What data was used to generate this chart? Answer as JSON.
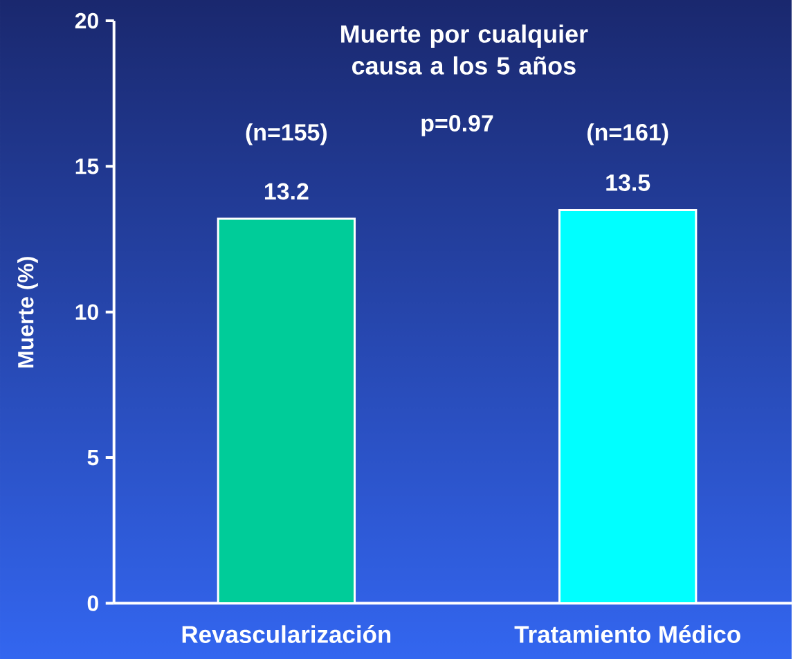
{
  "chart_data": {
    "type": "bar",
    "title": "Muerte por cualquier causa a los 5 años",
    "categories": [
      "Revascularización",
      "Tratamiento Médico"
    ],
    "values": [
      13.2,
      13.5
    ],
    "colors": [
      "#00cc99",
      "#00ffff"
    ],
    "ylabel": "Muerte (%)",
    "ylim": [
      0,
      20
    ],
    "yticks": [
      0,
      5,
      10,
      15,
      20
    ],
    "data_labels": true,
    "grid": false,
    "annotations": [
      "(n=155)",
      "p=0.97",
      "(n=161)"
    ]
  }
}
